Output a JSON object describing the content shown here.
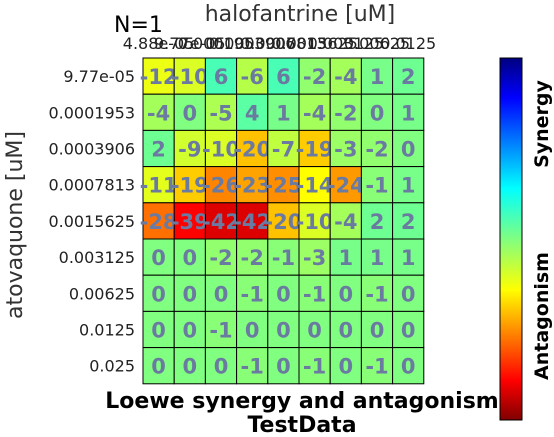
{
  "chart_data": {
    "type": "heatmap",
    "title": "Loewe synergy and antagonism",
    "subtitle": "TestData",
    "annotation": "N=1",
    "xlabel": "halofantrine [uM]",
    "ylabel": "atovaquone [uM]",
    "x_tick_labels": [
      "4.88e-05",
      "9.77e-05",
      "0.0001953",
      "0.0003906",
      "0.0007813",
      "0.0015625",
      "0.003125",
      "0.00625",
      "0.0125"
    ],
    "y_tick_labels": [
      "9.77e-05",
      "0.0001953",
      "0.0003906",
      "0.0007813",
      "0.0015625",
      "0.003125",
      "0.00625",
      "0.0125",
      "0.025"
    ],
    "values": [
      [
        -12,
        -10,
        6,
        -6,
        6,
        -2,
        -4,
        1,
        2
      ],
      [
        -4,
        0,
        -5,
        4,
        1,
        -4,
        -2,
        0,
        1
      ],
      [
        2,
        -9,
        -10,
        -20,
        -7,
        -19,
        -3,
        -2,
        0
      ],
      [
        -11,
        -19,
        -26,
        -23,
        -25,
        -14,
        -24,
        -1,
        1
      ],
      [
        -28,
        -39,
        -42,
        -42,
        -20,
        -10,
        -4,
        2,
        2
      ],
      [
        0,
        0,
        -2,
        -2,
        -1,
        -3,
        1,
        1,
        1
      ],
      [
        0,
        0,
        0,
        -1,
        0,
        -1,
        0,
        -1,
        0
      ],
      [
        0,
        0,
        -1,
        0,
        0,
        0,
        0,
        0,
        0
      ],
      [
        0,
        0,
        0,
        -1,
        0,
        -1,
        0,
        -1,
        0
      ]
    ],
    "colorbar": {
      "top_label": "Synergy",
      "bottom_label": "Antagonism",
      "colormap": "jet",
      "range": [
        -50,
        50
      ]
    },
    "colors": {
      "cell_text": "#6b7aa1",
      "grid_line": "#000000"
    }
  }
}
